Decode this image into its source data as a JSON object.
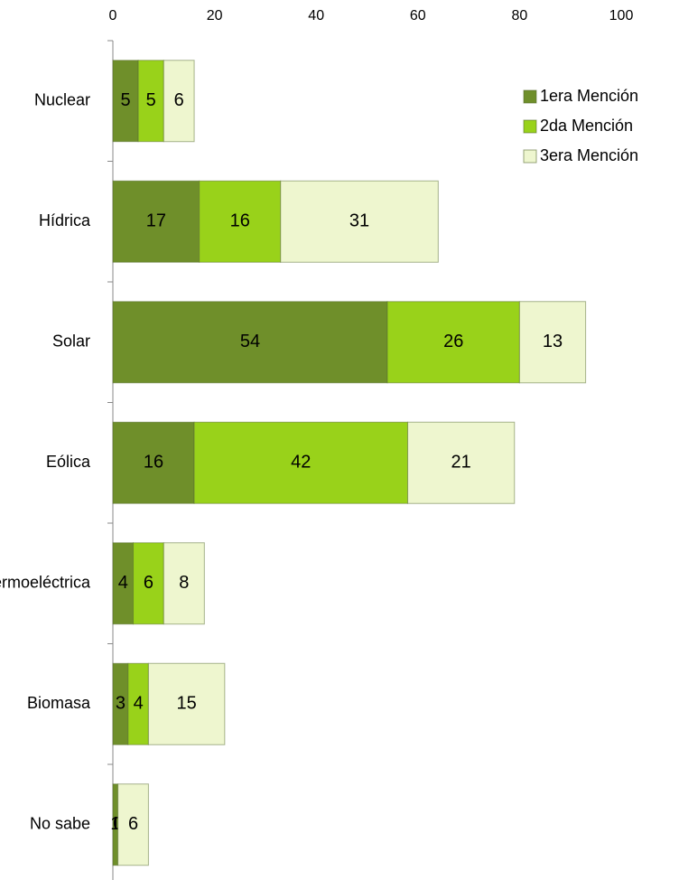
{
  "chart_data": {
    "type": "stacked-bar-horizontal",
    "categories": [
      "Nuclear",
      "Hídrica",
      "Solar",
      "Eólica",
      "Geotermoeléctrica",
      "Biomasa",
      "No sabe"
    ],
    "series": [
      {
        "name": "1era Mención",
        "color": "#6f8f2a",
        "values": [
          5,
          17,
          54,
          16,
          4,
          3,
          1
        ]
      },
      {
        "name": "2da Mención",
        "color": "#99d21a",
        "values": [
          5,
          16,
          26,
          42,
          6,
          4,
          0
        ]
      },
      {
        "name": "3era Mención",
        "color": "#eef6cf",
        "values": [
          6,
          31,
          13,
          21,
          8,
          15,
          6
        ]
      }
    ],
    "xlim": [
      0,
      100
    ],
    "xticks": [
      0,
      20,
      40,
      60,
      80,
      100
    ],
    "legend": "top-right"
  }
}
